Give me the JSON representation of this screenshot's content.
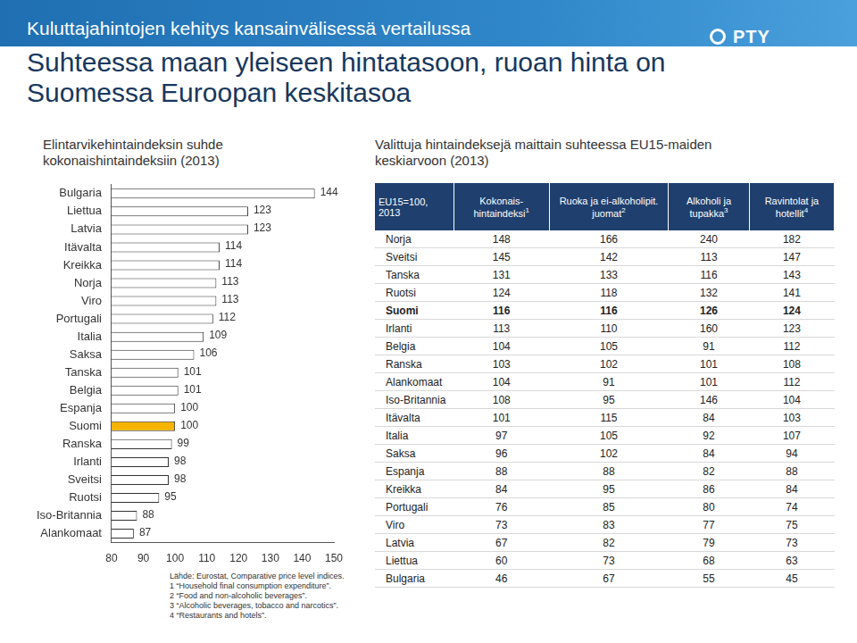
{
  "header": {
    "kicker": "Kuluttajahintojen kehitys kansainvälisessä vertailussa",
    "title": "Suhteessa maan yleiseen hintatasoon, ruoan hinta on Suomessa Euroopan keskitasoa",
    "logo": "PTY"
  },
  "chart_data": {
    "type": "bar",
    "orientation": "horizontal",
    "title": "Elintarvikehintaindeksin suhde kokonaishintaindeksiin (2013)",
    "categories": [
      "Bulgaria",
      "Liettua",
      "Latvia",
      "Itävalta",
      "Kreikka",
      "Norja",
      "Viro",
      "Portugali",
      "Italia",
      "Saksa",
      "Tanska",
      "Belgia",
      "Espanja",
      "Suomi",
      "Ranska",
      "Irlanti",
      "Sveitsi",
      "Ruotsi",
      "Iso-Britannia",
      "Alankomaat"
    ],
    "values": [
      144,
      123,
      123,
      114,
      114,
      113,
      113,
      112,
      109,
      106,
      101,
      101,
      100,
      100,
      99,
      98,
      98,
      95,
      88,
      87
    ],
    "colors": [
      "#ffffff",
      "#ffffff",
      "#ffffff",
      "#ffffff",
      "#ffffff",
      "#ffffff",
      "#ffffff",
      "#ffffff",
      "#ffffff",
      "#ffffff",
      "#ffffff",
      "#ffffff",
      "#ffffff",
      "#f5b400",
      "#ffffff",
      "#ffffff",
      "#ffffff",
      "#ffffff",
      "#ffffff",
      "#ffffff"
    ],
    "xlim": [
      80,
      150
    ],
    "xticks": [
      80,
      90,
      100,
      110,
      120,
      130,
      140,
      150
    ],
    "grid": false,
    "data_labels": true
  },
  "notes": [
    "Lähde: Eurostat, Comparative price level indices.",
    "1 “Household final consumption expenditure”.",
    "2 “Food and non-alcoholic beverages”.",
    "3 “Alcoholic beverages, tobacco and narcotics”.",
    "4 “Restaurants and hotels”."
  ],
  "table": {
    "title": "Valittuja hintaindeksejä maittain suhteessa EU15-maiden keskiarvoon (2013)",
    "columns": [
      {
        "text": "EU15=100, 2013",
        "note": null
      },
      {
        "text": "Kokonais-hintaindeksi",
        "note": "1"
      },
      {
        "text": "Ruoka ja ei-alkoholipit. juomat",
        "note": "2"
      },
      {
        "text": "Alkoholi ja tupakka",
        "note": "3"
      },
      {
        "text": "Ravintolat ja hotellit",
        "note": "4"
      }
    ],
    "rows": [
      {
        "country": "Norja",
        "values": [
          148,
          166,
          240,
          182
        ],
        "bold": false
      },
      {
        "country": "Sveitsi",
        "values": [
          145,
          142,
          113,
          147
        ],
        "bold": false
      },
      {
        "country": "Tanska",
        "values": [
          131,
          133,
          116,
          143
        ],
        "bold": false
      },
      {
        "country": "Ruotsi",
        "values": [
          124,
          118,
          132,
          141
        ],
        "bold": false
      },
      {
        "country": "Suomi",
        "values": [
          116,
          116,
          126,
          124
        ],
        "bold": true
      },
      {
        "country": "Irlanti",
        "values": [
          113,
          110,
          160,
          123
        ],
        "bold": false
      },
      {
        "country": "Belgia",
        "values": [
          104,
          105,
          91,
          112
        ],
        "bold": false
      },
      {
        "country": "Ranska",
        "values": [
          103,
          102,
          101,
          108
        ],
        "bold": false
      },
      {
        "country": "Alankomaat",
        "values": [
          104,
          91,
          101,
          112
        ],
        "bold": false
      },
      {
        "country": "Iso-Britannia",
        "values": [
          108,
          95,
          146,
          104
        ],
        "bold": false
      },
      {
        "country": "Itävalta",
        "values": [
          101,
          115,
          84,
          103
        ],
        "bold": false
      },
      {
        "country": "Italia",
        "values": [
          97,
          105,
          92,
          107
        ],
        "bold": false
      },
      {
        "country": "Saksa",
        "values": [
          96,
          102,
          84,
          94
        ],
        "bold": false
      },
      {
        "country": "Espanja",
        "values": [
          88,
          88,
          82,
          88
        ],
        "bold": false
      },
      {
        "country": "Kreikka",
        "values": [
          84,
          95,
          86,
          84
        ],
        "bold": false
      },
      {
        "country": "Portugali",
        "values": [
          76,
          85,
          80,
          74
        ],
        "bold": false
      },
      {
        "country": "Viro",
        "values": [
          73,
          83,
          77,
          75
        ],
        "bold": false
      },
      {
        "country": "Latvia",
        "values": [
          67,
          82,
          79,
          73
        ],
        "bold": false
      },
      {
        "country": "Liettua",
        "values": [
          60,
          73,
          68,
          63
        ],
        "bold": false
      },
      {
        "country": "Bulgaria",
        "values": [
          46,
          67,
          55,
          45
        ],
        "bold": false
      }
    ]
  }
}
